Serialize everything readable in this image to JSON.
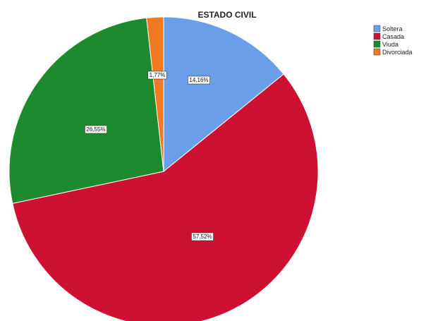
{
  "chart_data": {
    "type": "pie",
    "title": "ESTADO CIVIL",
    "legend_position": "top-right",
    "start_angle_deg": 0,
    "direction": "clockwise",
    "slices": [
      {
        "label": "Soltera",
        "value": 14.16,
        "value_label": "14,16%",
        "color": "#6b9ee8"
      },
      {
        "label": "Casada",
        "value": 57.52,
        "value_label": "57,52%",
        "color": "#cc1133"
      },
      {
        "label": "Viuda",
        "value": 26.55,
        "value_label": "26,55%",
        "color": "#1e8a2e"
      },
      {
        "label": "Divorciada",
        "value": 1.77,
        "value_label": "1,77%",
        "color": "#f07a22"
      }
    ]
  }
}
